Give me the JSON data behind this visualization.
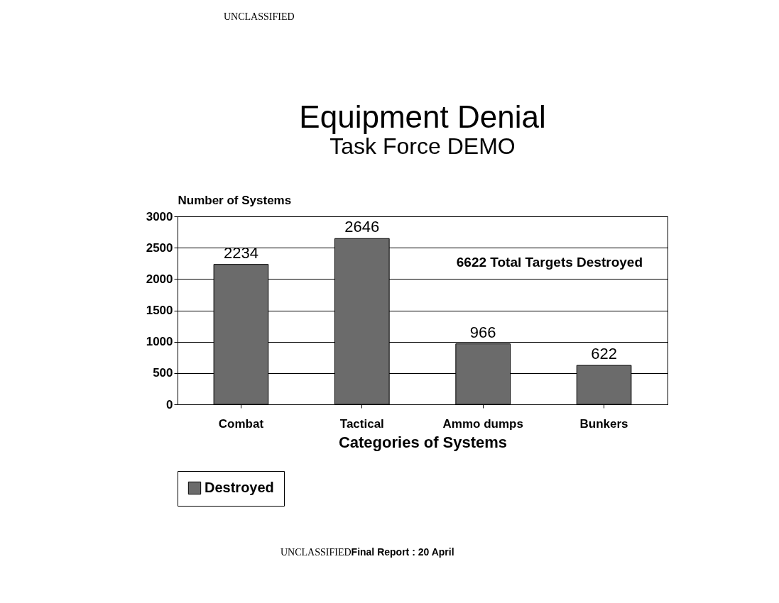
{
  "chart_data": {
    "type": "bar",
    "title": "Equipment Denial",
    "subtitle": "Task Force DEMO",
    "xlabel": "Categories of Systems",
    "ylabel": "Number of Systems",
    "categories": [
      "Combat",
      "Tactical",
      "Ammo dumps",
      "Bunkers"
    ],
    "series": [
      {
        "name": "Destroyed",
        "color": "#6b6b6b",
        "values": [
          2234,
          2646,
          966,
          622
        ]
      }
    ],
    "ylim": [
      0,
      3000
    ],
    "yticks": [
      0,
      500,
      1000,
      1500,
      2000,
      2500,
      3000
    ],
    "grid": "y",
    "legend": "bottom",
    "data_labels": true,
    "annotations": [
      "UNCLASSIFIED",
      "6622 Total Targets Destroyed",
      "UNCLASSIFIED",
      "Final Report : 20 April"
    ]
  }
}
